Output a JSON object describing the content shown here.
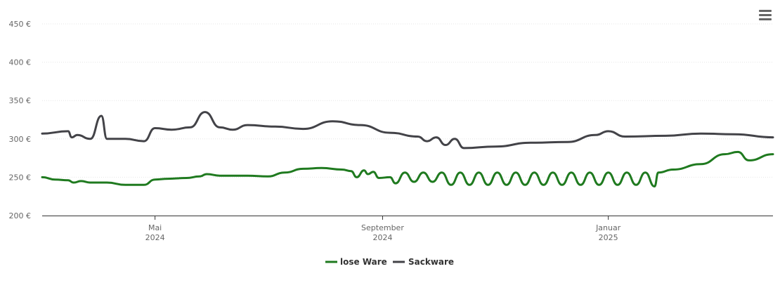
{
  "chart_data": {
    "type": "line",
    "title": "",
    "xlabel": "",
    "ylabel": "",
    "y_unit": "€",
    "ylim": [
      200,
      450
    ],
    "yticks": [
      200,
      250,
      300,
      350,
      400,
      450
    ],
    "ytick_labels": [
      "200 €",
      "250 €",
      "300 €",
      "350 €",
      "400 €",
      "450 €"
    ],
    "xlim": [
      "2024-03-01",
      "2025-03-31"
    ],
    "xticks": [
      {
        "date": "2024-05-01",
        "month": "Mai",
        "year": "2024"
      },
      {
        "date": "2024-09-01",
        "month": "September",
        "year": "2024"
      },
      {
        "date": "2025-01-01",
        "month": "Januar",
        "year": "2025"
      }
    ],
    "colors": {
      "lose": "#1f7a1f",
      "sack": "#434348"
    },
    "series": [
      {
        "name": "lose Ware",
        "key": "lose",
        "color": "#1f7a1f",
        "points": [
          [
            "2024-03-01",
            250
          ],
          [
            "2024-03-08",
            247
          ],
          [
            "2024-03-15",
            246
          ],
          [
            "2024-03-18",
            243
          ],
          [
            "2024-03-22",
            245
          ],
          [
            "2024-03-27",
            243
          ],
          [
            "2024-04-05",
            243
          ],
          [
            "2024-04-15",
            240
          ],
          [
            "2024-04-25",
            240
          ],
          [
            "2024-05-01",
            247
          ],
          [
            "2024-05-08",
            248
          ],
          [
            "2024-05-18",
            249
          ],
          [
            "2024-05-25",
            251
          ],
          [
            "2024-05-29",
            254
          ],
          [
            "2024-06-05",
            252
          ],
          [
            "2024-06-20",
            252
          ],
          [
            "2024-07-01",
            251
          ],
          [
            "2024-07-10",
            256
          ],
          [
            "2024-07-20",
            261
          ],
          [
            "2024-07-30",
            262
          ],
          [
            "2024-08-10",
            260
          ],
          [
            "2024-08-15",
            258
          ],
          [
            "2024-08-18",
            250
          ],
          [
            "2024-08-22",
            259
          ],
          [
            "2024-08-24",
            254
          ],
          [
            "2024-08-27",
            257
          ],
          [
            "2024-08-30",
            249
          ],
          [
            "2024-09-05",
            250
          ],
          [
            "2024-09-08",
            242
          ],
          [
            "2024-09-13",
            256
          ],
          [
            "2024-09-18",
            244
          ],
          [
            "2024-09-23",
            256
          ],
          [
            "2024-09-28",
            244
          ],
          [
            "2024-10-03",
            256
          ],
          [
            "2024-10-08",
            240
          ],
          [
            "2024-10-13",
            256
          ],
          [
            "2024-10-18",
            240
          ],
          [
            "2024-10-23",
            256
          ],
          [
            "2024-10-28",
            240
          ],
          [
            "2024-11-02",
            256
          ],
          [
            "2024-11-07",
            240
          ],
          [
            "2024-11-12",
            256
          ],
          [
            "2024-11-17",
            240
          ],
          [
            "2024-11-22",
            256
          ],
          [
            "2024-11-27",
            240
          ],
          [
            "2024-12-02",
            256
          ],
          [
            "2024-12-07",
            240
          ],
          [
            "2024-12-12",
            256
          ],
          [
            "2024-12-17",
            240
          ],
          [
            "2024-12-22",
            256
          ],
          [
            "2024-12-27",
            240
          ],
          [
            "2025-01-01",
            256
          ],
          [
            "2025-01-06",
            240
          ],
          [
            "2025-01-11",
            256
          ],
          [
            "2025-01-16",
            240
          ],
          [
            "2025-01-21",
            256
          ],
          [
            "2025-01-26",
            238
          ],
          [
            "2025-01-28",
            256
          ],
          [
            "2025-02-05",
            260
          ],
          [
            "2025-02-20",
            267
          ],
          [
            "2025-03-05",
            280
          ],
          [
            "2025-03-12",
            283
          ],
          [
            "2025-03-18",
            272
          ],
          [
            "2025-03-31",
            280
          ]
        ]
      },
      {
        "name": "Sackware",
        "key": "sack",
        "color": "#434348",
        "points": [
          [
            "2024-03-01",
            307
          ],
          [
            "2024-03-15",
            310
          ],
          [
            "2024-03-17",
            302
          ],
          [
            "2024-03-20",
            305
          ],
          [
            "2024-03-27",
            300
          ],
          [
            "2024-04-02",
            330
          ],
          [
            "2024-04-05",
            300
          ],
          [
            "2024-04-15",
            300
          ],
          [
            "2024-04-25",
            297
          ],
          [
            "2024-05-01",
            314
          ],
          [
            "2024-05-10",
            312
          ],
          [
            "2024-05-20",
            315
          ],
          [
            "2024-05-28",
            335
          ],
          [
            "2024-06-05",
            315
          ],
          [
            "2024-06-12",
            312
          ],
          [
            "2024-06-20",
            318
          ],
          [
            "2024-07-05",
            316
          ],
          [
            "2024-07-20",
            313
          ],
          [
            "2024-08-05",
            323
          ],
          [
            "2024-08-20",
            318
          ],
          [
            "2024-09-05",
            308
          ],
          [
            "2024-09-20",
            303
          ],
          [
            "2024-09-25",
            297
          ],
          [
            "2024-09-30",
            302
          ],
          [
            "2024-10-05",
            292
          ],
          [
            "2024-10-10",
            300
          ],
          [
            "2024-10-15",
            288
          ],
          [
            "2024-11-01",
            290
          ],
          [
            "2024-11-20",
            295
          ],
          [
            "2024-12-10",
            296
          ],
          [
            "2024-12-25",
            305
          ],
          [
            "2025-01-01",
            310
          ],
          [
            "2025-01-10",
            303
          ],
          [
            "2025-02-01",
            304
          ],
          [
            "2025-02-20",
            307
          ],
          [
            "2025-03-10",
            306
          ],
          [
            "2025-03-31",
            302
          ]
        ]
      }
    ],
    "legend": {
      "position": "bottom-center",
      "entries": [
        "lose Ware",
        "Sackware"
      ]
    },
    "grid": true
  },
  "ui": {
    "menu_icon": "hamburger-menu-icon"
  }
}
